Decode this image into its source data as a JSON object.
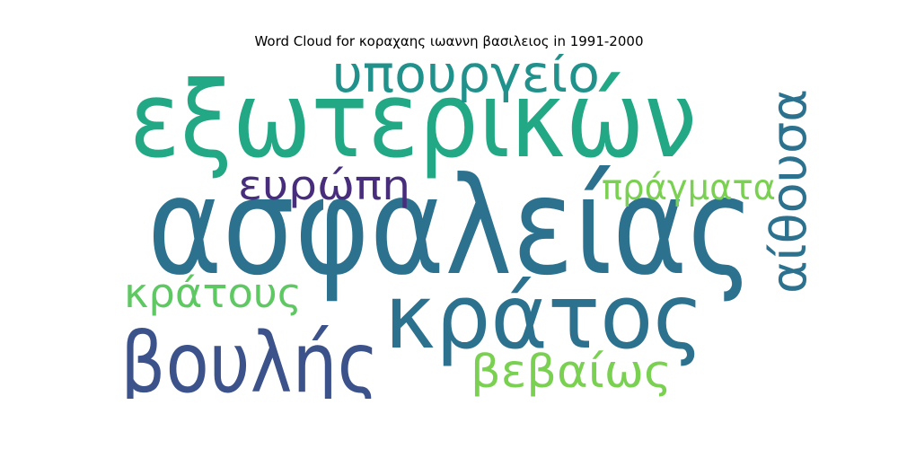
{
  "chart_data": {
    "type": "wordcloud",
    "title": "Word Cloud for κοραχαης ιωαννη βασιλειος in 1991-2000",
    "words": [
      {
        "text": "ασφαλείας",
        "weight": 1.0,
        "color": "#2c728e",
        "orientation": "horizontal"
      },
      {
        "text": "εξωτερικών",
        "weight": 0.78,
        "color": "#22a884",
        "orientation": "horizontal"
      },
      {
        "text": "κράτος",
        "weight": 0.66,
        "color": "#2c728e",
        "orientation": "horizontal"
      },
      {
        "text": "βουλής",
        "weight": 0.62,
        "color": "#3b528b",
        "orientation": "horizontal"
      },
      {
        "text": "υπουργείο",
        "weight": 0.38,
        "color": "#21918c",
        "orientation": "horizontal"
      },
      {
        "text": "αίθουσα",
        "weight": 0.36,
        "color": "#2c728e",
        "orientation": "vertical"
      },
      {
        "text": "βεβαίως",
        "weight": 0.34,
        "color": "#7ad151",
        "orientation": "horizontal"
      },
      {
        "text": "κράτους",
        "weight": 0.3,
        "color": "#5ec962",
        "orientation": "horizontal"
      },
      {
        "text": "ευρώπη",
        "weight": 0.3,
        "color": "#472d7b",
        "orientation": "horizontal"
      },
      {
        "text": "πράγματα",
        "weight": 0.26,
        "color": "#7ad151",
        "orientation": "horizontal"
      }
    ]
  }
}
